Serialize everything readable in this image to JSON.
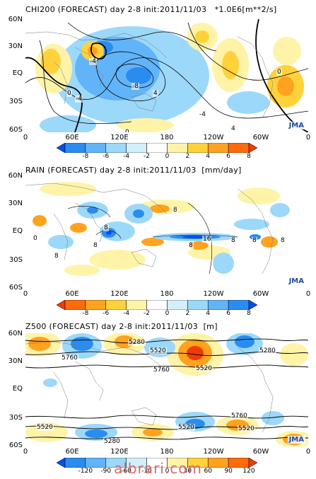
{
  "panels": [
    {
      "id": "chi200",
      "title": "CHI200 (FORECAST) day 2-8 init:2011/11/03   *1.0E6[m**2/s]",
      "lat_labels": [
        "60N",
        "30N",
        "EQ",
        "30S",
        "60S"
      ],
      "lon_labels": [
        "0",
        "60E",
        "120E",
        "180",
        "120W",
        "60W",
        "0"
      ],
      "colorbar_labels": [
        "-8",
        "-6",
        "-4",
        "-2",
        "0",
        "2",
        "4",
        "6",
        "8"
      ],
      "contour_labels": [
        "-4",
        "-4",
        "-4",
        "-8",
        "0",
        "0",
        "4",
        "4",
        "0"
      ],
      "logo": "JMA",
      "colors": [
        "#0050f0",
        "#2a8cf0",
        "#62b4f8",
        "#9cd8fa",
        "#d2f0fc",
        "#ffffff",
        "#fff3a8",
        "#ffd23c",
        "#ffa21e",
        "#ff6a0a",
        "#f03c00"
      ]
    },
    {
      "id": "rain",
      "title": "RAIN (FORECAST) day 2-8 init:2011/11/03  [mm/day]",
      "lat_labels": [
        "60N",
        "30N",
        "EQ",
        "30S",
        "60S"
      ],
      "lon_labels": [
        "0",
        "60E",
        "120E",
        "180",
        "120W",
        "60W",
        "0"
      ],
      "colorbar_labels": [
        "-8",
        "-6",
        "-4",
        "-2",
        "0",
        "2",
        "4",
        "6",
        "8"
      ],
      "contour_labels": [
        "8",
        "8",
        "8",
        "16",
        "8",
        "8",
        "8",
        "8",
        "8",
        "0"
      ],
      "logo": "JMA",
      "colors": [
        "#f03c00",
        "#ff6a0a",
        "#ffa21e",
        "#ffd23c",
        "#fff3a8",
        "#ffffff",
        "#d2f0fc",
        "#9cd8fa",
        "#62b4f8",
        "#2a8cf0",
        "#0050f0"
      ]
    },
    {
      "id": "z500",
      "title": "Z500 (FORECAST) day 2-8 init:2011/11/03  [m]",
      "lat_labels": [
        "60N",
        "30N",
        "EQ",
        "30S",
        "60S"
      ],
      "lon_labels": [
        "0",
        "60E",
        "120E",
        "180",
        "120W",
        "60W",
        "0"
      ],
      "colorbar_labels": [
        "-120",
        "-90",
        "-60",
        "-30",
        "0",
        "30",
        "60",
        "90",
        "120"
      ],
      "contour_labels": [
        "5280",
        "5520",
        "5760",
        "5760",
        "5520",
        "5280",
        "5520",
        "5760",
        "5520",
        "5520",
        "5280"
      ],
      "logo": "JMA",
      "colors": [
        "#0050f0",
        "#2a8cf0",
        "#62b4f8",
        "#9cd8fa",
        "#d2f0fc",
        "#ffffff",
        "#fff3a8",
        "#ffd23c",
        "#ffa21e",
        "#ff6a0a",
        "#f03c00"
      ]
    }
  ],
  "watermark": "albrari.com"
}
